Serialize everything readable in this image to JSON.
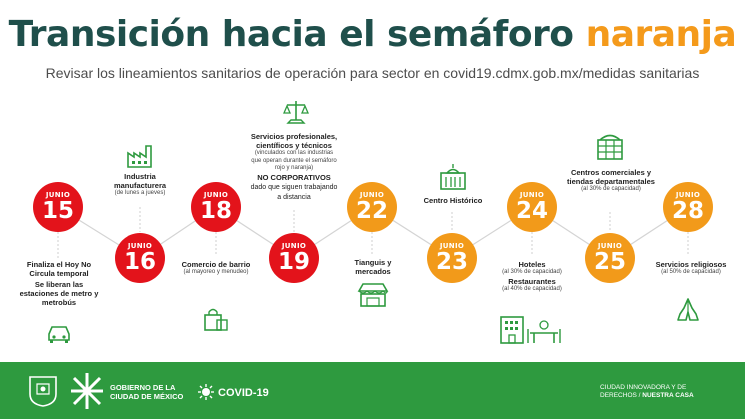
{
  "header": {
    "title_main": "Transición hacia el semáforo ",
    "title_accent": "naranja",
    "subtitle": "Revisar los lineamientos sanitarios de operación para sector en covid19.cdmx.gob.mx/medidas sanitarias"
  },
  "colors": {
    "red": "#e3131b",
    "orange": "#f29a1a",
    "title": "#1f4f4b",
    "accent": "#f49a1b",
    "footer": "#2e9a3f"
  },
  "milestones": [
    {
      "month": "JUNIO",
      "day": "15",
      "color": "red",
      "title": "Finaliza el Hoy No Circula temporal",
      "title2": "Se liberan las estaciones de metro y metrobús",
      "note": "",
      "icon": "car-icon"
    },
    {
      "month": "JUNIO",
      "day": "16",
      "color": "red",
      "title": "Industria manufacturera",
      "note": "(de lunes a jueves)",
      "icon": "factory-icon"
    },
    {
      "month": "JUNIO",
      "day": "18",
      "color": "red",
      "title": "Comercio de barrio",
      "note": "(al mayoreo y menudeo)",
      "icon": "shopping-bag-icon"
    },
    {
      "month": "JUNIO",
      "day": "19",
      "color": "red",
      "title": "Servicios profesionales, científicos y técnicos",
      "note": "(vinculados con las industrias que operan durante el semáforo rojo y naranja)",
      "title2": "NO CORPORATIVOS",
      "note2": "dado que siguen trabajando a distancia",
      "icon": "scales-icon"
    },
    {
      "month": "JUNIO",
      "day": "22",
      "color": "orange",
      "title": "Tianguis y mercados",
      "note": "",
      "icon": "market-stall-icon"
    },
    {
      "month": "JUNIO",
      "day": "23",
      "color": "orange",
      "title": "Centro Histórico",
      "note": "",
      "icon": "historic-building-icon"
    },
    {
      "month": "JUNIO",
      "day": "24",
      "color": "orange",
      "title": "Hoteles",
      "note": "(al 30% de capacidad)",
      "title2": "Restaurantes",
      "note2": "(al 40% de capacidad)",
      "icon": "hotel-restaurant-icon"
    },
    {
      "month": "JUNIO",
      "day": "25",
      "color": "orange",
      "title": "Centros comerciales y tiendas departamentales",
      "note": "(al 30% de capacidad)",
      "icon": "mall-icon"
    },
    {
      "month": "JUNIO",
      "day": "28",
      "color": "orange",
      "title": "Servicios religiosos",
      "note": "(al 50% de capacidad)",
      "icon": "praying-hands-icon"
    }
  ],
  "footer": {
    "gov_line1": "GOBIERNO DE LA",
    "gov_line2": "CIUDAD DE MÉXICO",
    "covid": "COVID-19",
    "right_line1": "CIUDAD INNOVADORA Y DE",
    "right_line2a": "DERECHOS / ",
    "right_line2b": "NUESTRA CASA"
  }
}
